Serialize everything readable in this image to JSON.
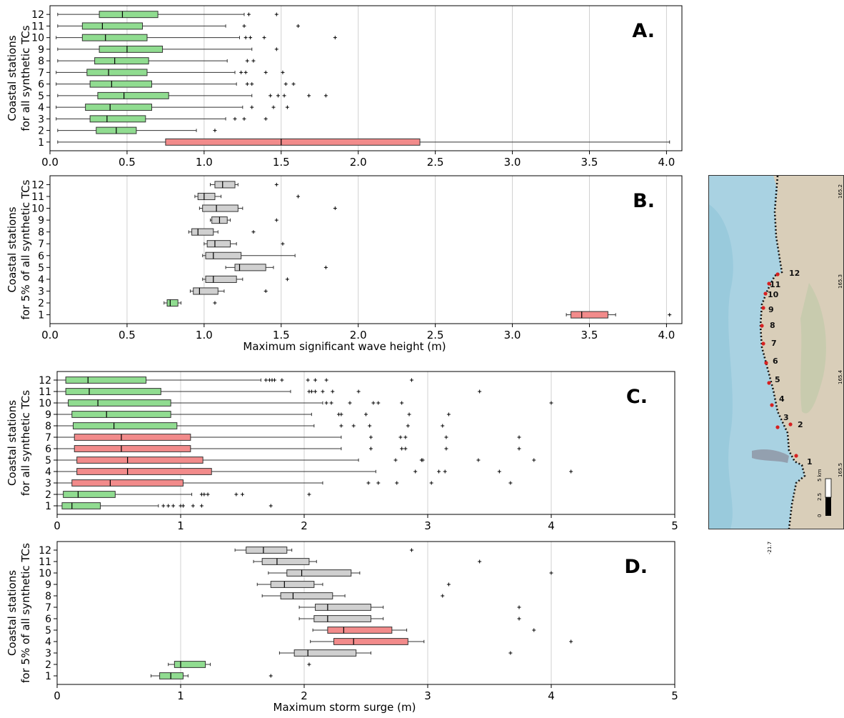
{
  "chart_data": [
    {
      "type": "boxplot",
      "panel_label": "A.",
      "ylabel": [
        "Coastal stations",
        "for all synthetic TCs"
      ],
      "xlabel": "",
      "xlim": [
        0,
        4.1
      ],
      "xticks": [
        "0.0",
        "0.5",
        "1.0",
        "1.5",
        "2.0",
        "2.5",
        "3.0",
        "3.5",
        "4.0"
      ],
      "tick_values": [
        0,
        0.5,
        1,
        1.5,
        2,
        2.5,
        3,
        3.5,
        4
      ],
      "grid": "vertical",
      "boxes": [
        {
          "station": "1",
          "wmin": 0.05,
          "q1": 0.75,
          "median": 1.5,
          "q3": 2.4,
          "wmax": 4.02,
          "color": "#f28b8b",
          "outliers": []
        },
        {
          "station": "2",
          "wmin": 0.05,
          "q1": 0.3,
          "median": 0.43,
          "q3": 0.56,
          "wmax": 0.95,
          "color": "#90dc90",
          "outliers": [
            1.07
          ]
        },
        {
          "station": "3",
          "wmin": 0.04,
          "q1": 0.26,
          "median": 0.37,
          "q3": 0.62,
          "wmax": 1.14,
          "color": "#90dc90",
          "outliers": [
            1.2,
            1.26,
            1.4
          ]
        },
        {
          "station": "4",
          "wmin": 0.04,
          "q1": 0.23,
          "median": 0.39,
          "q3": 0.66,
          "wmax": 1.25,
          "color": "#90dc90",
          "outliers": [
            1.31,
            1.45,
            1.54
          ]
        },
        {
          "station": "5",
          "wmin": 0.05,
          "q1": 0.31,
          "median": 0.48,
          "q3": 0.77,
          "wmax": 1.31,
          "color": "#90dc90",
          "outliers": [
            1.43,
            1.48,
            1.52,
            1.68,
            1.79
          ]
        },
        {
          "station": "6",
          "wmin": 0.04,
          "q1": 0.26,
          "median": 0.4,
          "q3": 0.66,
          "wmax": 1.21,
          "color": "#90dc90",
          "outliers": [
            1.28,
            1.31,
            1.53,
            1.58
          ]
        },
        {
          "station": "7",
          "wmin": 0.04,
          "q1": 0.24,
          "median": 0.38,
          "q3": 0.63,
          "wmax": 1.2,
          "color": "#90dc90",
          "outliers": [
            1.24,
            1.27,
            1.4,
            1.51
          ]
        },
        {
          "station": "8",
          "wmin": 0.05,
          "q1": 0.29,
          "median": 0.42,
          "q3": 0.64,
          "wmax": 1.15,
          "color": "#90dc90",
          "outliers": [
            1.28,
            1.32
          ]
        },
        {
          "station": "9",
          "wmin": 0.05,
          "q1": 0.32,
          "median": 0.5,
          "q3": 0.73,
          "wmax": 1.31,
          "color": "#90dc90",
          "outliers": [
            1.47
          ]
        },
        {
          "station": "10",
          "wmin": 0.04,
          "q1": 0.21,
          "median": 0.36,
          "q3": 0.63,
          "wmax": 1.23,
          "color": "#90dc90",
          "outliers": [
            1.27,
            1.3,
            1.39,
            1.85
          ]
        },
        {
          "station": "11",
          "wmin": 0.05,
          "q1": 0.21,
          "median": 0.34,
          "q3": 0.6,
          "wmax": 1.14,
          "color": "#90dc90",
          "outliers": [
            1.26,
            1.61
          ]
        },
        {
          "station": "12",
          "wmin": 0.05,
          "q1": 0.32,
          "median": 0.47,
          "q3": 0.7,
          "wmax": 1.26,
          "color": "#90dc90",
          "outliers": [
            1.29,
            1.47
          ]
        }
      ]
    },
    {
      "type": "boxplot",
      "panel_label": "B.",
      "ylabel": [
        "Coastal stations",
        "for 5% of all synthetic TCs"
      ],
      "xlabel": "Maximum significant wave height (m)",
      "xlim": [
        0,
        4.1
      ],
      "xticks": [
        "0.0",
        "0.5",
        "1.0",
        "1.5",
        "2.0",
        "2.5",
        "3.0",
        "3.5",
        "4.0"
      ],
      "tick_values": [
        0,
        0.5,
        1,
        1.5,
        2,
        2.5,
        3,
        3.5,
        4
      ],
      "grid": "vertical",
      "boxes": [
        {
          "station": "1",
          "wmin": 3.35,
          "q1": 3.38,
          "median": 3.45,
          "q3": 3.62,
          "wmax": 3.67,
          "color": "#f28b8b",
          "outliers": [
            4.02
          ]
        },
        {
          "station": "2",
          "wmin": 0.74,
          "q1": 0.76,
          "median": 0.78,
          "q3": 0.83,
          "wmax": 0.85,
          "color": "#90dc90",
          "outliers": [
            1.07
          ]
        },
        {
          "station": "3",
          "wmin": 0.91,
          "q1": 0.93,
          "median": 0.97,
          "q3": 1.09,
          "wmax": 1.13,
          "color": "#d0d0d0",
          "outliers": [
            1.4
          ]
        },
        {
          "station": "4",
          "wmin": 0.99,
          "q1": 1.01,
          "median": 1.06,
          "q3": 1.21,
          "wmax": 1.25,
          "color": "#d0d0d0",
          "outliers": [
            1.54
          ]
        },
        {
          "station": "5",
          "wmin": 1.14,
          "q1": 1.2,
          "median": 1.23,
          "q3": 1.4,
          "wmax": 1.45,
          "color": "#d0d0d0",
          "outliers": [
            1.79
          ]
        },
        {
          "station": "6",
          "wmin": 0.99,
          "q1": 1.01,
          "median": 1.06,
          "q3": 1.24,
          "wmax": 1.59,
          "color": "#d0d0d0",
          "outliers": []
        },
        {
          "station": "7",
          "wmin": 1.0,
          "q1": 1.02,
          "median": 1.07,
          "q3": 1.17,
          "wmax": 1.21,
          "color": "#d0d0d0",
          "outliers": [
            1.51
          ]
        },
        {
          "station": "8",
          "wmin": 0.9,
          "q1": 0.92,
          "median": 0.96,
          "q3": 1.06,
          "wmax": 1.09,
          "color": "#d0d0d0",
          "outliers": [
            1.32
          ]
        },
        {
          "station": "9",
          "wmin": 1.04,
          "q1": 1.05,
          "median": 1.1,
          "q3": 1.15,
          "wmax": 1.17,
          "color": "#d0d0d0",
          "outliers": [
            1.47
          ]
        },
        {
          "station": "10",
          "wmin": 0.97,
          "q1": 0.99,
          "median": 1.08,
          "q3": 1.22,
          "wmax": 1.25,
          "color": "#d0d0d0",
          "outliers": [
            1.85
          ]
        },
        {
          "station": "11",
          "wmin": 0.94,
          "q1": 0.96,
          "median": 1.0,
          "q3": 1.07,
          "wmax": 1.11,
          "color": "#d0d0d0",
          "outliers": [
            1.61
          ]
        },
        {
          "station": "12",
          "wmin": 1.04,
          "q1": 1.07,
          "median": 1.12,
          "q3": 1.2,
          "wmax": 1.22,
          "color": "#d0d0d0",
          "outliers": [
            1.47
          ]
        }
      ]
    },
    {
      "type": "boxplot",
      "panel_label": "C.",
      "ylabel": [
        "Coastal stations",
        "for all synthetic TCs"
      ],
      "xlabel": "",
      "xlim": [
        0,
        5
      ],
      "xticks": [
        "0",
        "1",
        "2",
        "3",
        "4",
        "5"
      ],
      "tick_values": [
        0,
        1,
        2,
        3,
        4,
        5
      ],
      "grid": "vertical",
      "boxes": [
        {
          "station": "1",
          "wmin": 0.0,
          "q1": 0.04,
          "median": 0.12,
          "q3": 0.35,
          "wmax": 0.82,
          "color": "#90dc90",
          "outliers": [
            0.86,
            0.9,
            0.94,
            1.0,
            1.02,
            1.1,
            1.17,
            1.73
          ]
        },
        {
          "station": "2",
          "wmin": 0.0,
          "q1": 0.05,
          "median": 0.17,
          "q3": 0.47,
          "wmax": 1.09,
          "color": "#90dc90",
          "outliers": [
            1.17,
            1.19,
            1.22,
            1.45,
            1.5,
            2.04
          ]
        },
        {
          "station": "3",
          "wmin": 0.0,
          "q1": 0.12,
          "median": 0.43,
          "q3": 1.02,
          "wmax": 2.15,
          "color": "#f28b8b",
          "outliers": [
            2.52,
            2.6,
            2.75,
            3.03,
            3.67
          ]
        },
        {
          "station": "4",
          "wmin": 0.0,
          "q1": 0.16,
          "median": 0.57,
          "q3": 1.25,
          "wmax": 2.58,
          "color": "#f28b8b",
          "outliers": [
            2.9,
            3.09,
            3.14,
            3.58,
            4.16
          ]
        },
        {
          "station": "5",
          "wmin": 0.0,
          "q1": 0.16,
          "median": 0.57,
          "q3": 1.18,
          "wmax": 2.44,
          "color": "#f28b8b",
          "outliers": [
            2.74,
            2.95,
            2.96,
            3.41,
            3.86
          ]
        },
        {
          "station": "6",
          "wmin": 0.0,
          "q1": 0.14,
          "median": 0.52,
          "q3": 1.08,
          "wmax": 2.3,
          "color": "#f28b8b",
          "outliers": [
            2.54,
            2.79,
            2.82,
            3.15,
            3.74
          ]
        },
        {
          "station": "7",
          "wmin": 0.0,
          "q1": 0.14,
          "median": 0.52,
          "q3": 1.08,
          "wmax": 2.3,
          "color": "#f28b8b",
          "outliers": [
            2.54,
            2.78,
            2.82,
            3.15,
            3.74
          ]
        },
        {
          "station": "8",
          "wmin": 0.0,
          "q1": 0.13,
          "median": 0.46,
          "q3": 0.97,
          "wmax": 2.08,
          "color": "#90dc90",
          "outliers": [
            2.3,
            2.4,
            2.53,
            2.84,
            3.12
          ]
        },
        {
          "station": "9",
          "wmin": 0.0,
          "q1": 0.12,
          "median": 0.4,
          "q3": 0.92,
          "wmax": 2.06,
          "color": "#90dc90",
          "outliers": [
            2.28,
            2.3,
            2.5,
            2.85,
            3.17
          ]
        },
        {
          "station": "10",
          "wmin": 0.0,
          "q1": 0.09,
          "median": 0.33,
          "q3": 0.92,
          "wmax": 2.15,
          "color": "#90dc90",
          "outliers": [
            2.18,
            2.22,
            2.37,
            2.56,
            2.6,
            2.79,
            4.0
          ]
        },
        {
          "station": "11",
          "wmin": 0.0,
          "q1": 0.07,
          "median": 0.26,
          "q3": 0.84,
          "wmax": 1.89,
          "color": "#90dc90",
          "outliers": [
            2.04,
            2.06,
            2.09,
            2.15,
            2.23,
            2.44,
            3.42
          ]
        },
        {
          "station": "12",
          "wmin": 0.0,
          "q1": 0.07,
          "median": 0.25,
          "q3": 0.72,
          "wmax": 1.65,
          "color": "#90dc90",
          "outliers": [
            1.69,
            1.72,
            1.74,
            1.76,
            1.82,
            2.03,
            2.09,
            2.18,
            2.87
          ]
        }
      ]
    },
    {
      "type": "boxplot",
      "panel_label": "D.",
      "ylabel": [
        "Coastal stations",
        "for 5% of all synthetic TCs"
      ],
      "xlabel": "Maximum storm surge (m)",
      "xlim": [
        0,
        5
      ],
      "xticks": [
        "0",
        "1",
        "2",
        "3",
        "4",
        "5"
      ],
      "tick_values": [
        0,
        1,
        2,
        3,
        4,
        5
      ],
      "grid": "vertical",
      "boxes": [
        {
          "station": "1",
          "wmin": 0.76,
          "q1": 0.83,
          "median": 0.92,
          "q3": 1.02,
          "wmax": 1.06,
          "color": "#90dc90",
          "outliers": [
            1.73
          ]
        },
        {
          "station": "2",
          "wmin": 0.9,
          "q1": 0.95,
          "median": 1.0,
          "q3": 1.2,
          "wmax": 1.24,
          "color": "#90dc90",
          "outliers": [
            2.04
          ]
        },
        {
          "station": "3",
          "wmin": 1.8,
          "q1": 1.92,
          "median": 2.03,
          "q3": 2.42,
          "wmax": 2.54,
          "color": "#d0d0d0",
          "outliers": [
            3.67
          ]
        },
        {
          "station": "4",
          "wmin": 2.05,
          "q1": 2.24,
          "median": 2.4,
          "q3": 2.84,
          "wmax": 2.97,
          "color": "#f28b8b",
          "outliers": [
            4.16
          ]
        },
        {
          "station": "5",
          "wmin": 2.07,
          "q1": 2.19,
          "median": 2.32,
          "q3": 2.71,
          "wmax": 2.83,
          "color": "#f28b8b",
          "outliers": [
            3.86
          ]
        },
        {
          "station": "6",
          "wmin": 1.96,
          "q1": 2.08,
          "median": 2.19,
          "q3": 2.54,
          "wmax": 2.64,
          "color": "#d0d0d0",
          "outliers": [
            3.74
          ]
        },
        {
          "station": "7",
          "wmin": 1.96,
          "q1": 2.09,
          "median": 2.19,
          "q3": 2.54,
          "wmax": 2.64,
          "color": "#d0d0d0",
          "outliers": [
            3.74
          ]
        },
        {
          "station": "8",
          "wmin": 1.66,
          "q1": 1.81,
          "median": 1.91,
          "q3": 2.23,
          "wmax": 2.33,
          "color": "#d0d0d0",
          "outliers": [
            3.12
          ]
        },
        {
          "station": "9",
          "wmin": 1.62,
          "q1": 1.73,
          "median": 1.84,
          "q3": 2.08,
          "wmax": 2.15,
          "color": "#d0d0d0",
          "outliers": [
            3.17
          ]
        },
        {
          "station": "10",
          "wmin": 1.71,
          "q1": 1.86,
          "median": 1.98,
          "q3": 2.38,
          "wmax": 2.45,
          "color": "#d0d0d0",
          "outliers": [
            4.0
          ]
        },
        {
          "station": "11",
          "wmin": 1.59,
          "q1": 1.66,
          "median": 1.78,
          "q3": 2.04,
          "wmax": 2.1,
          "color": "#d0d0d0",
          "outliers": [
            3.42
          ]
        },
        {
          "station": "12",
          "wmin": 1.44,
          "q1": 1.53,
          "median": 1.67,
          "q3": 1.86,
          "wmax": 1.9,
          "color": "#d0d0d0",
          "outliers": [
            2.87
          ]
        }
      ]
    }
  ],
  "map": {
    "station_labels": [
      "1",
      "2",
      "3",
      "4",
      "5",
      "6",
      "7",
      "8",
      "9",
      "10",
      "11",
      "12"
    ],
    "lon_labels": [
      "165.2",
      "165.3",
      "165.4",
      "165.5"
    ],
    "lat_label": "-21.7",
    "scale_labels": [
      "0",
      "2.5",
      "5 km"
    ],
    "colors": {
      "sea": "#a9d2e2",
      "land": "#d9ceb9",
      "coast": "#111111",
      "station": "#d62020"
    }
  }
}
